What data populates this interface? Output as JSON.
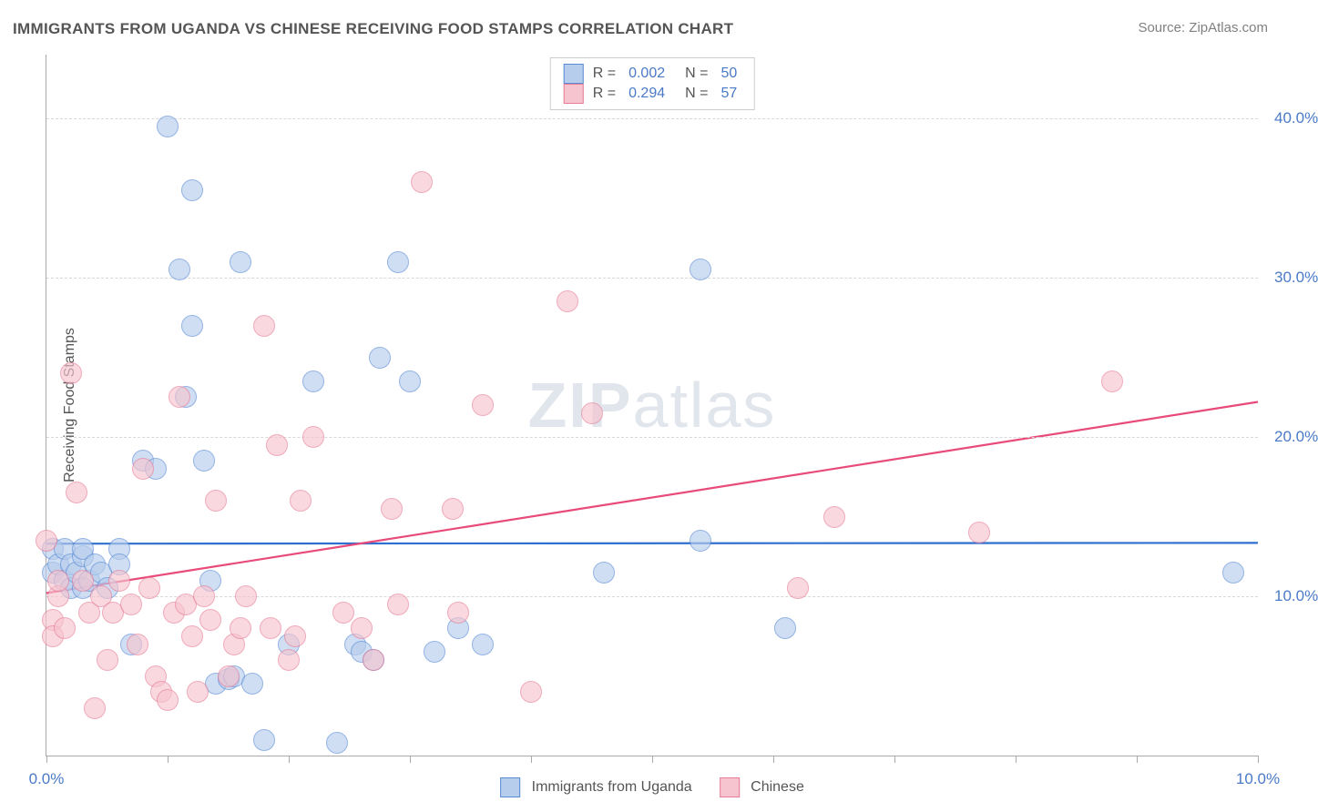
{
  "title": "IMMIGRANTS FROM UGANDA VS CHINESE RECEIVING FOOD STAMPS CORRELATION CHART",
  "source": "Source: ZipAtlas.com",
  "ylabel": "Receiving Food Stamps",
  "watermark_bold": "ZIP",
  "watermark_light": "atlas",
  "chart": {
    "type": "scatter",
    "background_color": "#ffffff",
    "grid_color": "#d8d8d8",
    "axis_color": "#aaaaaa",
    "font_family": "Arial",
    "title_fontsize": 17,
    "title_color": "#555555",
    "axis_label_fontsize": 16,
    "tick_label_fontsize": 17,
    "tick_label_color": "#4a7ac7",
    "xlim": [
      0.0,
      10.0
    ],
    "ylim": [
      0.0,
      44.0
    ],
    "yticks": [
      10.0,
      20.0,
      30.0,
      40.0
    ],
    "ytick_labels": [
      "10.0%",
      "20.0%",
      "30.0%",
      "40.0%"
    ],
    "xticks": [
      0.0,
      1.0,
      2.0,
      3.0,
      4.0,
      5.0,
      6.0,
      7.0,
      8.0,
      9.0,
      10.0
    ],
    "xtick_labeled": {
      "0.0": "0.0%",
      "10.0": "10.0%"
    },
    "marker_radius": 11,
    "marker_opacity": 0.65,
    "series": [
      {
        "name": "Immigrants from Uganda",
        "fill_color": "#b6cdec",
        "stroke_color": "#5a8bd6",
        "line_color": "#2f6fd0",
        "line_width": 2.2,
        "R": "0.002",
        "N": "50",
        "trend": {
          "y_at_xmin": 13.3,
          "y_at_xmax": 13.35
        },
        "points": [
          [
            0.05,
            13.0
          ],
          [
            0.05,
            11.5
          ],
          [
            0.1,
            12.0
          ],
          [
            0.15,
            11.0
          ],
          [
            0.15,
            13.0
          ],
          [
            0.2,
            12.0
          ],
          [
            0.2,
            10.5
          ],
          [
            0.25,
            11.5
          ],
          [
            0.3,
            12.5
          ],
          [
            0.3,
            13.0
          ],
          [
            0.3,
            10.5
          ],
          [
            0.35,
            11.0
          ],
          [
            0.4,
            12.0
          ],
          [
            0.45,
            11.5
          ],
          [
            0.5,
            10.5
          ],
          [
            0.6,
            13.0
          ],
          [
            0.6,
            12.0
          ],
          [
            0.7,
            7.0
          ],
          [
            0.8,
            18.5
          ],
          [
            0.9,
            18.0
          ],
          [
            1.0,
            39.5
          ],
          [
            1.1,
            30.5
          ],
          [
            1.15,
            22.5
          ],
          [
            1.2,
            35.5
          ],
          [
            1.2,
            27.0
          ],
          [
            1.3,
            18.5
          ],
          [
            1.35,
            11.0
          ],
          [
            1.4,
            4.5
          ],
          [
            1.5,
            4.8
          ],
          [
            1.55,
            5.0
          ],
          [
            1.6,
            31.0
          ],
          [
            1.7,
            4.5
          ],
          [
            1.8,
            1.0
          ],
          [
            2.0,
            7.0
          ],
          [
            2.2,
            23.5
          ],
          [
            2.4,
            0.8
          ],
          [
            2.55,
            7.0
          ],
          [
            2.6,
            6.5
          ],
          [
            2.7,
            6.0
          ],
          [
            2.75,
            25.0
          ],
          [
            2.9,
            31.0
          ],
          [
            3.0,
            23.5
          ],
          [
            3.2,
            6.5
          ],
          [
            3.4,
            8.0
          ],
          [
            3.6,
            7.0
          ],
          [
            4.6,
            11.5
          ],
          [
            5.4,
            30.5
          ],
          [
            5.4,
            13.5
          ],
          [
            6.1,
            8.0
          ],
          [
            9.8,
            11.5
          ]
        ]
      },
      {
        "name": "Chinese",
        "fill_color": "#f6c4cf",
        "stroke_color": "#e77d97",
        "line_color": "#e84a7a",
        "line_width": 2.2,
        "R": "0.294",
        "N": "57",
        "trend": {
          "y_at_xmin": 10.2,
          "y_at_xmax": 22.2
        },
        "points": [
          [
            0.0,
            13.5
          ],
          [
            0.05,
            8.5
          ],
          [
            0.05,
            7.5
          ],
          [
            0.1,
            10.0
          ],
          [
            0.1,
            11.0
          ],
          [
            0.15,
            8.0
          ],
          [
            0.2,
            24.0
          ],
          [
            0.25,
            16.5
          ],
          [
            0.3,
            11.0
          ],
          [
            0.35,
            9.0
          ],
          [
            0.4,
            3.0
          ],
          [
            0.45,
            10.0
          ],
          [
            0.5,
            6.0
          ],
          [
            0.55,
            9.0
          ],
          [
            0.6,
            11.0
          ],
          [
            0.7,
            9.5
          ],
          [
            0.75,
            7.0
          ],
          [
            0.8,
            18.0
          ],
          [
            0.85,
            10.5
          ],
          [
            0.9,
            5.0
          ],
          [
            0.95,
            4.0
          ],
          [
            1.0,
            3.5
          ],
          [
            1.05,
            9.0
          ],
          [
            1.1,
            22.5
          ],
          [
            1.15,
            9.5
          ],
          [
            1.2,
            7.5
          ],
          [
            1.25,
            4.0
          ],
          [
            1.3,
            10.0
          ],
          [
            1.35,
            8.5
          ],
          [
            1.4,
            16.0
          ],
          [
            1.5,
            5.0
          ],
          [
            1.55,
            7.0
          ],
          [
            1.6,
            8.0
          ],
          [
            1.65,
            10.0
          ],
          [
            1.8,
            27.0
          ],
          [
            1.85,
            8.0
          ],
          [
            1.9,
            19.5
          ],
          [
            2.0,
            6.0
          ],
          [
            2.05,
            7.5
          ],
          [
            2.1,
            16.0
          ],
          [
            2.2,
            20.0
          ],
          [
            2.45,
            9.0
          ],
          [
            2.6,
            8.0
          ],
          [
            2.7,
            6.0
          ],
          [
            2.85,
            15.5
          ],
          [
            2.9,
            9.5
          ],
          [
            3.1,
            36.0
          ],
          [
            3.35,
            15.5
          ],
          [
            3.4,
            9.0
          ],
          [
            3.6,
            22.0
          ],
          [
            4.0,
            4.0
          ],
          [
            4.3,
            28.5
          ],
          [
            4.5,
            21.5
          ],
          [
            6.2,
            10.5
          ],
          [
            6.5,
            15.0
          ],
          [
            7.7,
            14.0
          ],
          [
            8.8,
            23.5
          ]
        ]
      }
    ],
    "legend_bottom": [
      {
        "label": "Immigrants from Uganda",
        "fill": "#b6cdec",
        "stroke": "#5a8bd6"
      },
      {
        "label": "Chinese",
        "fill": "#f6c4cf",
        "stroke": "#e77d97"
      }
    ]
  }
}
